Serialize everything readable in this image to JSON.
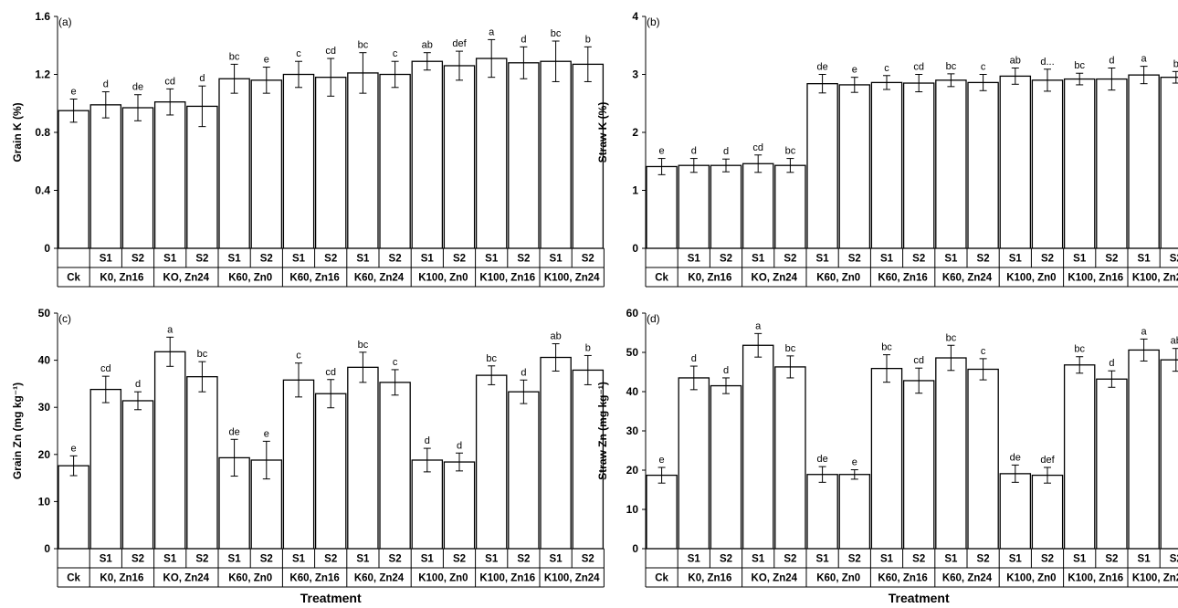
{
  "xlabel": "Treatment",
  "groups": [
    "Ck",
    "K0, Zn16",
    "KO, Zn24",
    "K60, Zn0",
    "K60, Zn16",
    "K60, Zn24",
    "K100, Zn0",
    "K100, Zn16",
    "K100, Zn24"
  ],
  "subs": [
    "",
    "S1",
    "S2",
    "S1",
    "S2",
    "S1",
    "S2",
    "S1",
    "S2",
    "S1",
    "S2",
    "S1",
    "S2",
    "S1",
    "S2",
    "S1",
    "S2"
  ],
  "chart_data": [
    {
      "type": "bar",
      "panel_label": "(a)",
      "ylabel": "Grain K (%)",
      "ylim": [
        0,
        1.6
      ],
      "yticks": [
        "0",
        "0.4",
        "0.8",
        "1.2",
        "1.6"
      ],
      "ytick_values": [
        0,
        0.4,
        0.8,
        1.2,
        1.6
      ],
      "values": [
        0.95,
        0.99,
        0.97,
        1.01,
        0.98,
        1.17,
        1.16,
        1.2,
        1.18,
        1.21,
        1.2,
        1.29,
        1.26,
        1.31,
        1.28,
        1.29,
        1.27
      ],
      "errors": [
        0.08,
        0.09,
        0.09,
        0.09,
        0.14,
        0.1,
        0.09,
        0.09,
        0.13,
        0.14,
        0.09,
        0.06,
        0.1,
        0.13,
        0.11,
        0.14,
        0.12
      ],
      "letters": [
        "e",
        "d",
        "de",
        "cd",
        "d",
        "bc",
        "e",
        "c",
        "cd",
        "bc",
        "c",
        "ab",
        "def",
        "a",
        "d",
        "bc",
        "b"
      ]
    },
    {
      "type": "bar",
      "panel_label": "(b)",
      "ylabel": "Straw K (%)",
      "ylim": [
        0,
        4
      ],
      "yticks": [
        "0",
        "1",
        "2",
        "3",
        "4"
      ],
      "ytick_values": [
        0,
        1,
        2,
        3,
        4
      ],
      "values": [
        1.41,
        1.43,
        1.43,
        1.46,
        1.43,
        2.84,
        2.82,
        2.86,
        2.85,
        2.9,
        2.86,
        2.97,
        2.9,
        2.92,
        2.92,
        2.99,
        2.95
      ],
      "errors": [
        0.14,
        0.12,
        0.11,
        0.15,
        0.12,
        0.16,
        0.13,
        0.12,
        0.15,
        0.11,
        0.14,
        0.14,
        0.19,
        0.1,
        0.19,
        0.15,
        0.1
      ],
      "letters": [
        "e",
        "d",
        "d",
        "cd",
        "bc",
        "de",
        "e",
        "c",
        "cd",
        "bc",
        "c",
        "ab",
        "d...",
        "bc",
        "d",
        "a",
        "b"
      ]
    },
    {
      "type": "bar",
      "panel_label": "(c)",
      "ylabel": "Grain Zn (mg kg⁻¹)",
      "ylim": [
        0,
        50
      ],
      "yticks": [
        "0",
        "10",
        "20",
        "30",
        "40",
        "50"
      ],
      "ytick_values": [
        0,
        10,
        20,
        30,
        40,
        50
      ],
      "values": [
        17.6,
        33.8,
        31.4,
        41.8,
        36.5,
        19.3,
        18.8,
        35.8,
        32.9,
        38.5,
        35.3,
        18.8,
        18.4,
        36.8,
        33.3,
        40.6,
        37.9
      ],
      "errors": [
        2.1,
        2.8,
        1.9,
        3.1,
        3.2,
        3.9,
        4.0,
        3.6,
        3.0,
        3.2,
        2.7,
        2.5,
        1.9,
        2.0,
        2.5,
        2.9,
        3.1
      ],
      "letters": [
        "e",
        "cd",
        "d",
        "a",
        "bc",
        "de",
        "e",
        "c",
        "cd",
        "bc",
        "c",
        "d",
        "d",
        "bc",
        "d",
        "ab",
        "b"
      ]
    },
    {
      "type": "bar",
      "panel_label": "(d)",
      "ylabel": "Straw Zn (mg kg⁻¹)",
      "ylim": [
        0,
        60
      ],
      "yticks": [
        "0",
        "10",
        "20",
        "30",
        "40",
        "50",
        "60"
      ],
      "ytick_values": [
        0,
        10,
        20,
        30,
        40,
        50,
        60
      ],
      "values": [
        18.7,
        43.5,
        41.5,
        51.8,
        46.3,
        18.9,
        18.9,
        45.9,
        42.8,
        48.6,
        45.7,
        19.1,
        18.7,
        46.8,
        43.2,
        50.6,
        48.1
      ],
      "errors": [
        2.0,
        3.0,
        2.0,
        3.0,
        2.8,
        2.0,
        1.2,
        3.5,
        3.2,
        3.2,
        2.7,
        2.2,
        2.0,
        2.1,
        2.1,
        2.8,
        2.9
      ],
      "letters": [
        "e",
        "d",
        "d",
        "a",
        "bc",
        "de",
        "e",
        "bc",
        "cd",
        "bc",
        "c",
        "de",
        "def",
        "bc",
        "d",
        "a",
        "ab"
      ]
    }
  ]
}
